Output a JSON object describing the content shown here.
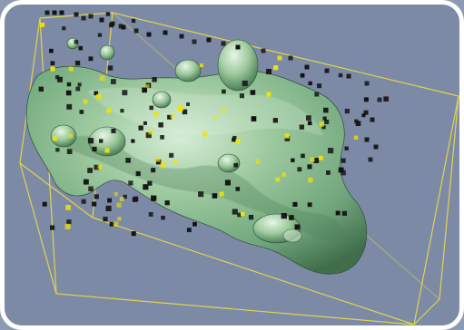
{
  "scene": {
    "background_color": "#7d8aa6",
    "frame_color": "#ffffff",
    "box_color": "#e6d84a",
    "surface_color": "#8fbf8f",
    "surface_highlight": "#cfe8cf",
    "surface_shadow": "#3f6e4a",
    "point_colors": {
      "outside": "#111111",
      "inside": "#f2e400"
    },
    "point_counts": {
      "black_visible": 160,
      "yellow_visible": 45
    }
  }
}
